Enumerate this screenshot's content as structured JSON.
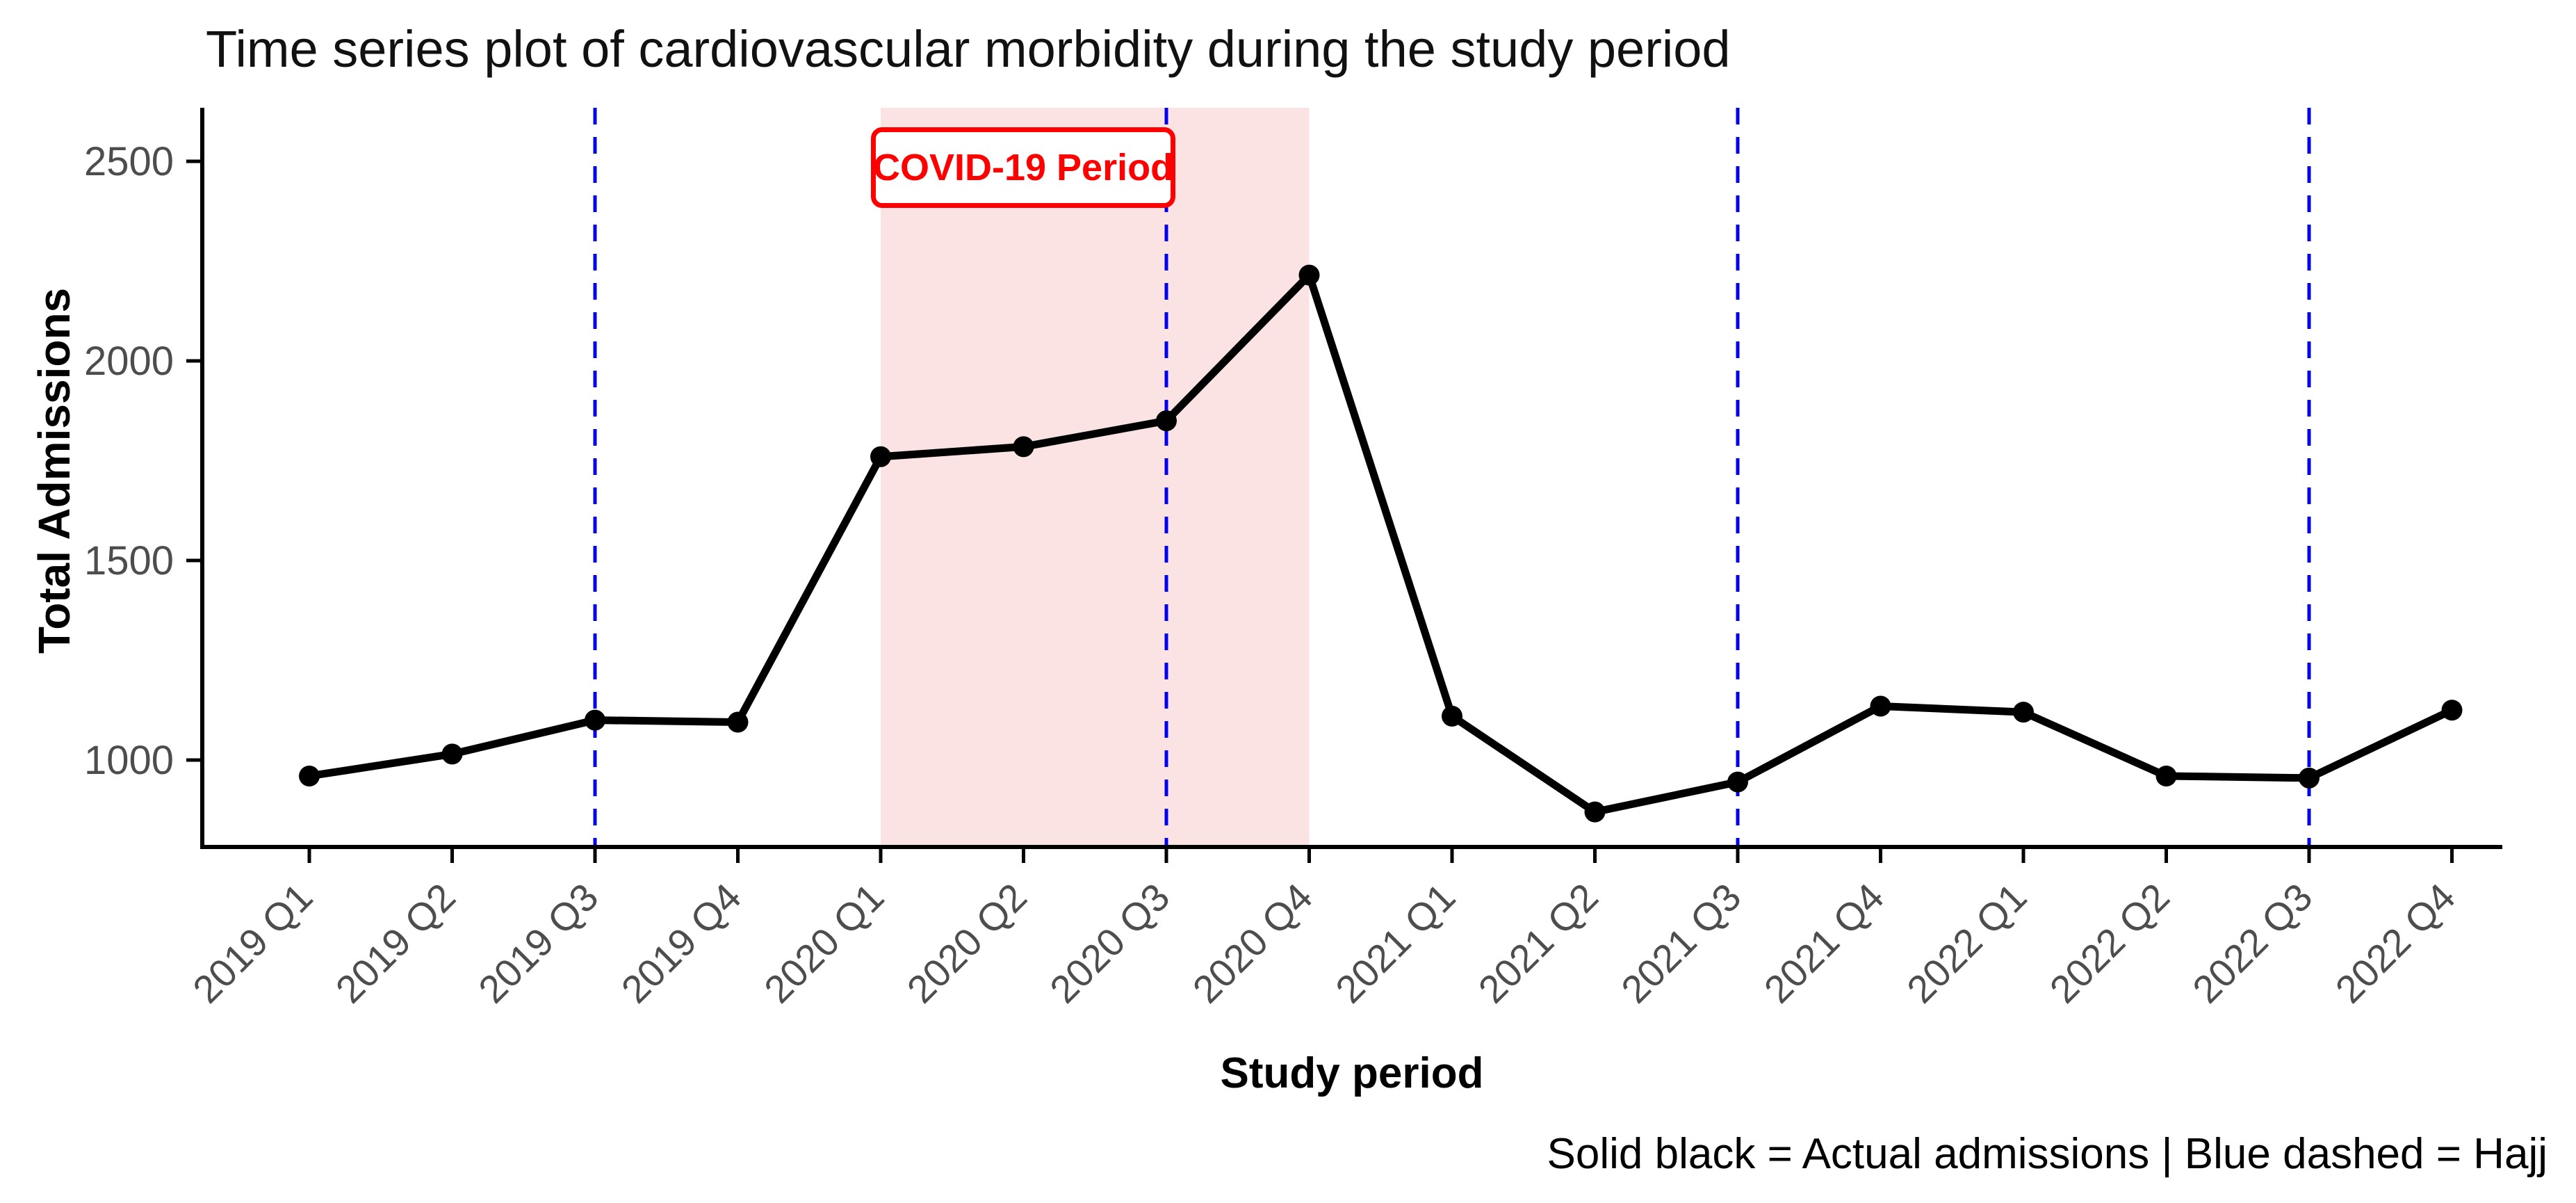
{
  "title": "Time series plot of cardiovascular morbidity during the study period",
  "chart_data": {
    "type": "line",
    "categories": [
      "2019 Q1",
      "2019 Q2",
      "2019 Q3",
      "2019 Q4",
      "2020 Q1",
      "2020 Q2",
      "2020 Q3",
      "2020 Q4",
      "2021 Q1",
      "2021 Q2",
      "2021 Q3",
      "2021 Q4",
      "2022 Q1",
      "2022 Q2",
      "2022 Q3",
      "2022 Q4"
    ],
    "series": [
      {
        "name": "Actual admissions",
        "values": [
          960,
          1015,
          1100,
          1095,
          1760,
          1785,
          1850,
          2215,
          1110,
          870,
          945,
          1135,
          1120,
          960,
          955,
          1125
        ]
      }
    ],
    "title": "Time series plot of cardiovascular morbidity during the study period",
    "xlabel": "Study period",
    "ylabel": "Total Admissions",
    "yticks": [
      1000,
      1500,
      2000,
      2500
    ],
    "ylim": [
      780,
      2630
    ],
    "grid": false,
    "legend_position": "none",
    "marker": "circle",
    "annotations": {
      "covid_label": "COVID-19 Period",
      "covid_band": {
        "from": "2020 Q1",
        "to": "2020 Q4"
      },
      "hajj_lines": [
        "2019 Q3",
        "2020 Q3",
        "2021 Q3",
        "2022 Q3"
      ]
    },
    "caption": "Solid black = Actual admissions | Blue dashed = Hajj"
  },
  "colors": {
    "series_line": "#000000",
    "marker": "#000000",
    "hajj_dashed": "#0000EE",
    "covid_band_fill": "#FCE3E3",
    "covid_label_text": "#FF0000",
    "covid_label_border": "#FF0000",
    "axis_line": "#000000",
    "tick_text": "#4D4D4D"
  }
}
